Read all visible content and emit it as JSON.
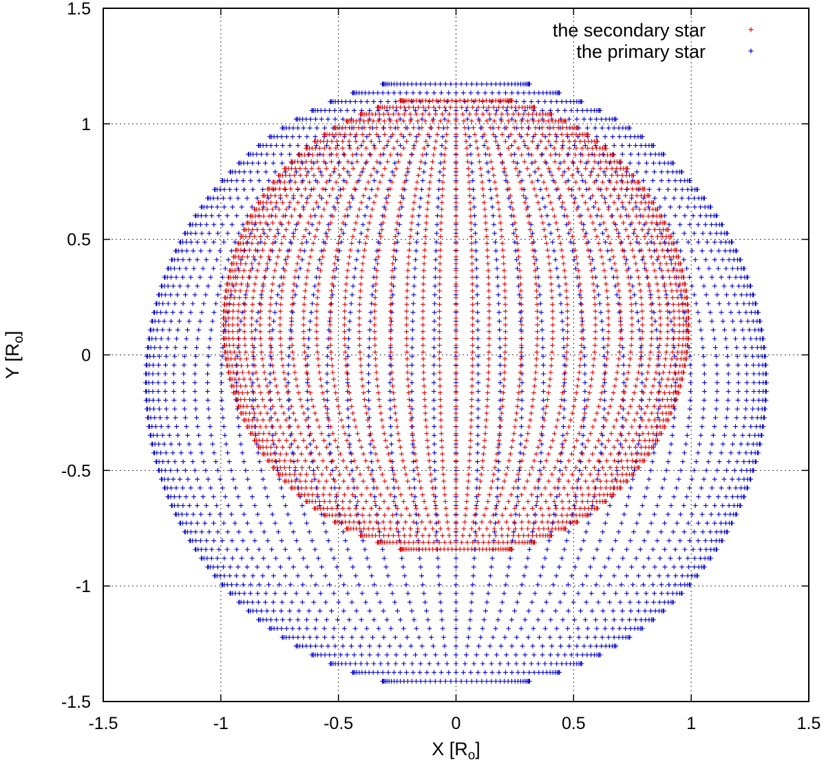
{
  "chart_data": {
    "type": "scatter",
    "title": "",
    "xlabel": "X [R",
    "xlabel_sub": "o",
    "xlabel_end": "]",
    "ylabel": "Y [R",
    "ylabel_sub": "o",
    "ylabel_end": "]",
    "xlim": [
      -1.5,
      1.5
    ],
    "ylim": [
      -1.5,
      1.5
    ],
    "x_ticks": [
      -1.5,
      -1,
      -0.5,
      0,
      0.5,
      1,
      1.5
    ],
    "y_ticks": [
      -1.5,
      -1,
      -0.5,
      0,
      0.5,
      1,
      1.5
    ],
    "x_tick_labels": [
      "-1.5",
      "-1",
      "-0.5",
      "0",
      "0.5",
      "1",
      "1.5"
    ],
    "y_tick_labels": [
      "-1.5",
      "-1",
      "-0.5",
      "0",
      "0.5",
      "1",
      "1.5"
    ],
    "grid": true,
    "legend_position": "top-right",
    "marker": "+",
    "series": [
      {
        "name": "the primary star",
        "color": "#0000cc",
        "shape": "ellipse",
        "center": [
          0,
          -0.12
        ],
        "semi_axis_x": 1.32,
        "semi_axis_y": 1.33,
        "n_latitude_rows": 70,
        "n_meridians": 44
      },
      {
        "name": "the secondary star",
        "color": "#dd0000",
        "shape": "ellipse",
        "center": [
          0,
          0.13
        ],
        "semi_axis_x": 0.99,
        "semi_axis_y": 1.0,
        "n_latitude_rows": 68,
        "n_meridians": 44
      }
    ],
    "legend": [
      {
        "label": "the secondary star",
        "color": "#dd0000"
      },
      {
        "label": "the primary star",
        "color": "#0000cc"
      }
    ]
  }
}
